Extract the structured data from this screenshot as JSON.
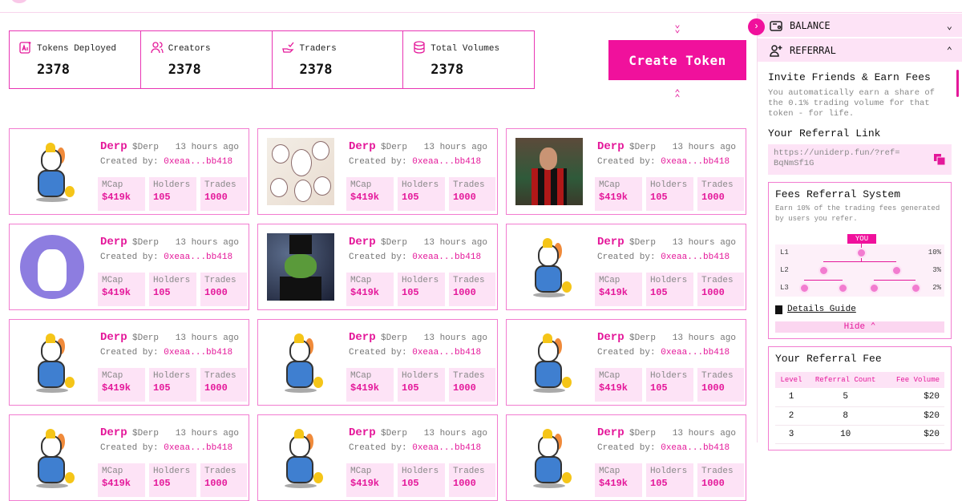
{
  "stats": [
    {
      "label": "Tokens Deployed",
      "value": "2378",
      "icon": "ai-icon"
    },
    {
      "label": "Creators",
      "value": "2378",
      "icon": "users-icon"
    },
    {
      "label": "Traders",
      "value": "2378",
      "icon": "hand-check-icon"
    },
    {
      "label": "Total Volumes",
      "value": "2378",
      "icon": "database-icon"
    }
  ],
  "create_token": "Create Token",
  "card_labels": {
    "created_by": "Created by:",
    "mcap": "MCap",
    "holders": "Holders",
    "trades": "Trades"
  },
  "cards": [
    {
      "name": "Derp",
      "ticker": "$Derp",
      "time": "13 hours ago",
      "creator": "0xeaa...bb418",
      "mcap": "$419k",
      "holders": "105",
      "trades": "1000",
      "image": "unicorn"
    },
    {
      "name": "Derp",
      "ticker": "$Derp",
      "time": "13 hours ago",
      "creator": "0xeaa...bb418",
      "mcap": "$419k",
      "holders": "105",
      "trades": "1000",
      "image": "unicorn-group"
    },
    {
      "name": "Derp",
      "ticker": "$Derp",
      "time": "13 hours ago",
      "creator": "0xeaa...bb418",
      "mcap": "$419k",
      "holders": "105",
      "trades": "1000",
      "image": "footballer"
    },
    {
      "name": "Derp",
      "ticker": "$Derp",
      "time": "13 hours ago",
      "creator": "0xeaa...bb418",
      "mcap": "$419k",
      "holders": "105",
      "trades": "1000",
      "image": "cat"
    },
    {
      "name": "Derp",
      "ticker": "$Derp",
      "time": "13 hours ago",
      "creator": "0xeaa...bb418",
      "mcap": "$419k",
      "holders": "105",
      "trades": "1000",
      "image": "pepe"
    },
    {
      "name": "Derp",
      "ticker": "$Derp",
      "time": "13 hours ago",
      "creator": "0xeaa...bb418",
      "mcap": "$419k",
      "holders": "105",
      "trades": "1000",
      "image": "unicorn"
    },
    {
      "name": "Derp",
      "ticker": "$Derp",
      "time": "13 hours ago",
      "creator": "0xeaa...bb418",
      "mcap": "$419k",
      "holders": "105",
      "trades": "1000",
      "image": "unicorn"
    },
    {
      "name": "Derp",
      "ticker": "$Derp",
      "time": "13 hours ago",
      "creator": "0xeaa...bb418",
      "mcap": "$419k",
      "holders": "105",
      "trades": "1000",
      "image": "unicorn"
    },
    {
      "name": "Derp",
      "ticker": "$Derp",
      "time": "13 hours ago",
      "creator": "0xeaa...bb418",
      "mcap": "$419k",
      "holders": "105",
      "trades": "1000",
      "image": "unicorn"
    },
    {
      "name": "Derp",
      "ticker": "$Derp",
      "time": "13 hours ago",
      "creator": "0xeaa...bb418",
      "mcap": "$419k",
      "holders": "105",
      "trades": "1000",
      "image": "unicorn"
    },
    {
      "name": "Derp",
      "ticker": "$Derp",
      "time": "13 hours ago",
      "creator": "0xeaa...bb418",
      "mcap": "$419k",
      "holders": "105",
      "trades": "1000",
      "image": "unicorn"
    },
    {
      "name": "Derp",
      "ticker": "$Derp",
      "time": "13 hours ago",
      "creator": "0xeaa...bb418",
      "mcap": "$419k",
      "holders": "105",
      "trades": "1000",
      "image": "unicorn"
    }
  ],
  "sidebar": {
    "balance": "BALANCE",
    "referral": "REFERRAL",
    "invite_title": "Invite Friends & Earn Fees",
    "invite_text": "You automatically earn a share of the 0.1% trading volume for that token - for life.",
    "link_title": "Your Referral Link",
    "link": "https://uniderp.fun/?ref=BqNmSf1G",
    "fees_title": "Fees Referral System",
    "fees_text": "Earn 10% of the trading fees generated by users you refer.",
    "you": "YOU",
    "levels": [
      {
        "label": "L1",
        "pct": "10%"
      },
      {
        "label": "L2",
        "pct": "3%"
      },
      {
        "label": "L3",
        "pct": "2%"
      }
    ],
    "details_guide": "Details Guide",
    "hide": "Hide",
    "fee_title": "Your Referral Fee",
    "table_headers": [
      "Level",
      "Referral Count",
      "Fee Volume"
    ],
    "table_rows": [
      [
        "1",
        "5",
        "$20"
      ],
      [
        "2",
        "8",
        "$20"
      ],
      [
        "3",
        "10",
        "$20"
      ]
    ]
  },
  "colors": {
    "accent": "#f0119c",
    "light": "#fde3f6",
    "border": "#f27cd0"
  }
}
